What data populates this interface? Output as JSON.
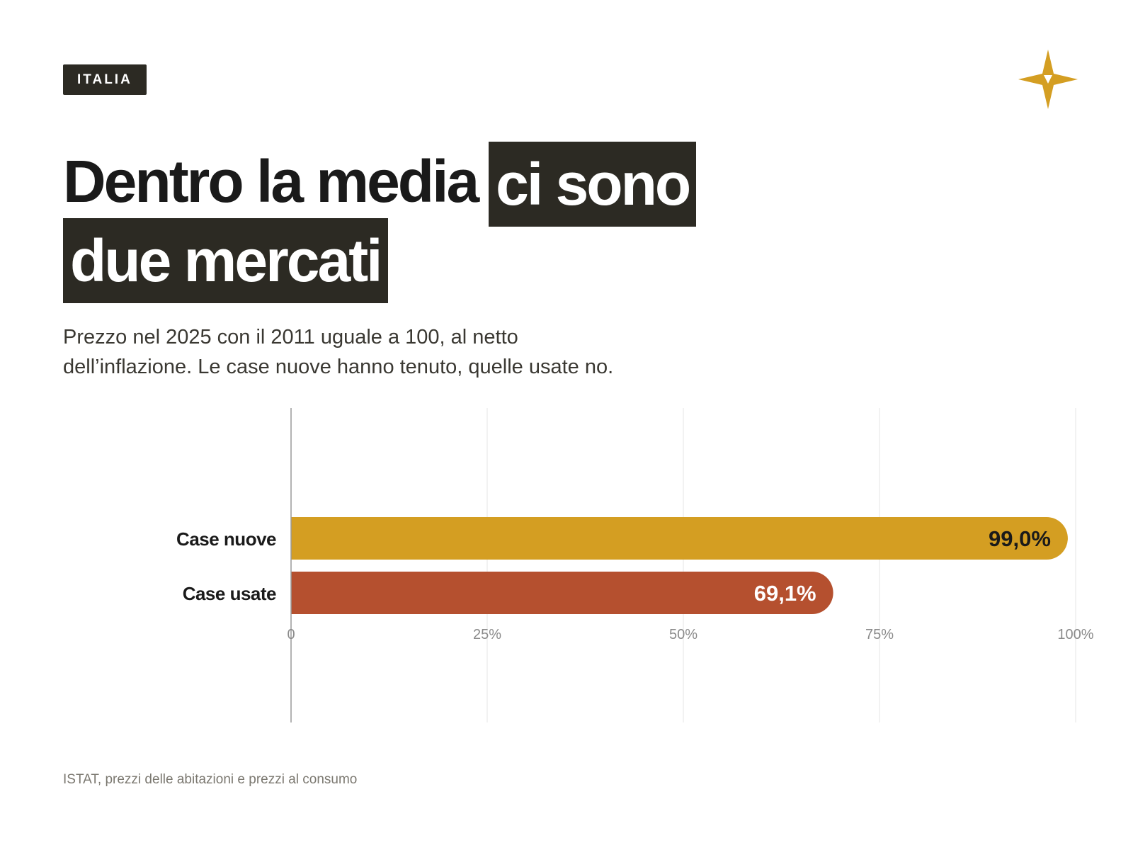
{
  "header": {
    "tag_label": "ITALIA",
    "logo_icon": "four-point-star-icon",
    "logo_color": "#d49e22"
  },
  "headline": {
    "part1": "Dentro la media",
    "part2_highlight": "ci sono",
    "part3_highlight": "due mercati"
  },
  "subtitle": {
    "line1": "Prezzo nel 2025 con il 2011 uguale a 100, al netto",
    "line2": "dell’inflazione. Le case nuove hanno tenuto, quelle usate no."
  },
  "chart_data": {
    "type": "bar",
    "orientation": "horizontal",
    "title": "",
    "xlabel": "",
    "ylabel": "",
    "categories": [
      "Case nuove",
      "Case usate"
    ],
    "values": [
      99.0,
      69.1
    ],
    "value_labels": [
      "99,0%",
      "69,1%"
    ],
    "colors": [
      "#d49e22",
      "#b5502f"
    ],
    "value_label_colors": [
      "#1a1a1a",
      "#ffffff"
    ],
    "xlim": [
      0,
      100
    ],
    "x_ticks": [
      0,
      25,
      50,
      75,
      100
    ],
    "x_tick_labels": [
      "0",
      "25%",
      "50%",
      "75%",
      "100%"
    ],
    "grid": true
  },
  "footer": {
    "source": "ISTAT, prezzi delle abitazioni e prezzi al consumo"
  }
}
